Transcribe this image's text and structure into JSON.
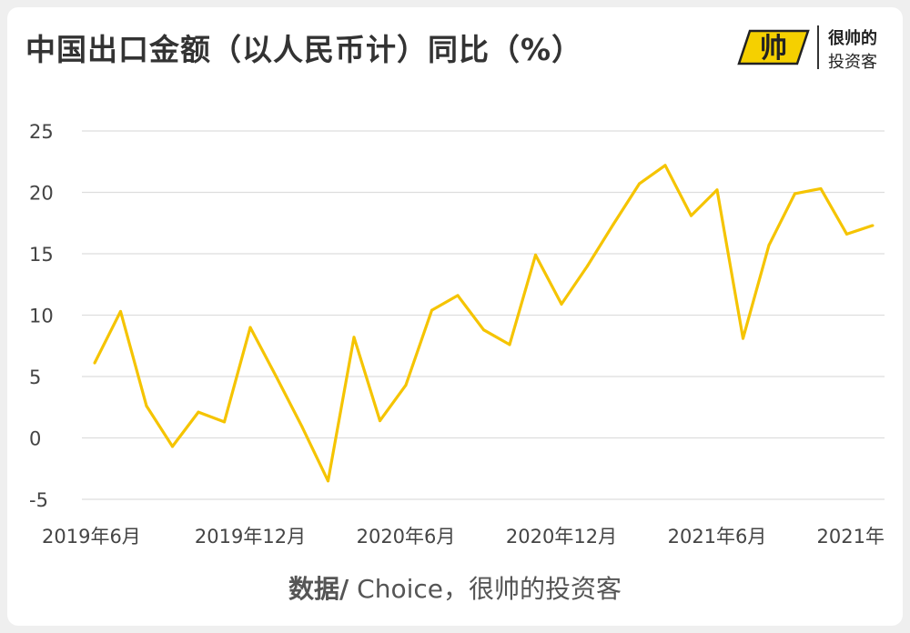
{
  "title": "中国出口金额（以人民币计）同比（%）",
  "logo": {
    "mark_text": "帅",
    "line1": "很帅的",
    "line2": "投资客",
    "mark_color": "#f5d000"
  },
  "source": {
    "label": "数据/",
    "text": " Choice，很帅的投资客"
  },
  "chart_data": {
    "type": "line",
    "title": "中国出口金额（以人民币计）同比（%）",
    "ylim": [
      -5,
      25
    ],
    "yticks": [
      25,
      20,
      15,
      10,
      5,
      0,
      -5
    ],
    "xtick_labels": [
      "2019年6月",
      "2019年12月",
      "2020年6月",
      "2020年12月",
      "2021年6月",
      "2021年"
    ],
    "grid": true,
    "line_color": "#f5c400",
    "series": [
      {
        "values": [
          6.1,
          10.3,
          2.6,
          -0.7,
          2.1,
          1.3,
          9.0,
          5.0,
          0.9,
          -3.5,
          8.2,
          1.4,
          4.3,
          10.4,
          11.6,
          8.8,
          7.6,
          14.9,
          10.9,
          14.0,
          17.4,
          20.7,
          22.2,
          18.1,
          20.2,
          8.1,
          15.7,
          19.9,
          20.3,
          16.6,
          17.3
        ]
      }
    ]
  }
}
